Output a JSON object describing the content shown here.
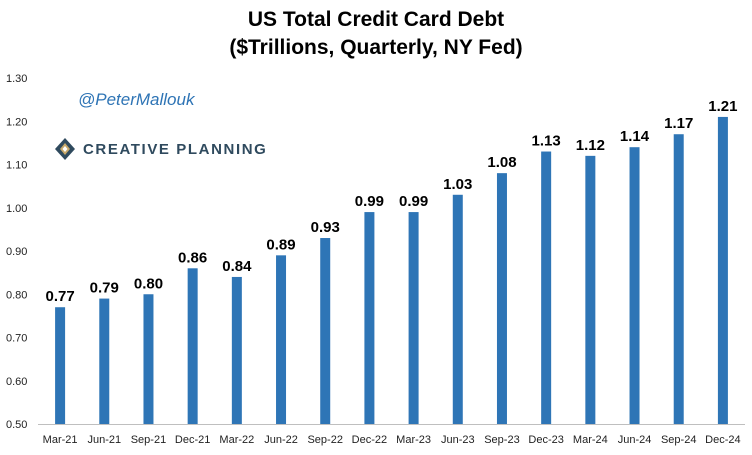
{
  "branding": {
    "handle": "@PeterMallouk",
    "company": "CREATIVE PLANNING"
  },
  "chart_data": {
    "type": "bar",
    "title_line1": "US Total Credit Card Debt",
    "title_line2": "($Trillions, Quarterly, NY Fed)",
    "xlabel": "",
    "ylabel": "",
    "ylim": [
      0.5,
      1.3
    ],
    "yticks": [
      0.5,
      0.6,
      0.7,
      0.8,
      0.9,
      1.0,
      1.1,
      1.2,
      1.3
    ],
    "ytick_labels": [
      "0.50",
      "0.60",
      "0.70",
      "0.80",
      "0.90",
      "1.00",
      "1.10",
      "1.20",
      "1.30"
    ],
    "categories": [
      "Mar-21",
      "Jun-21",
      "Sep-21",
      "Dec-21",
      "Mar-22",
      "Jun-22",
      "Sep-22",
      "Dec-22",
      "Mar-23",
      "Jun-23",
      "Sep-23",
      "Dec-23",
      "Mar-24",
      "Jun-24",
      "Sep-24",
      "Dec-24"
    ],
    "values": [
      0.77,
      0.79,
      0.8,
      0.86,
      0.84,
      0.89,
      0.93,
      0.99,
      0.99,
      1.03,
      1.08,
      1.13,
      1.12,
      1.14,
      1.17,
      1.21
    ],
    "value_labels": [
      "0.77",
      "0.79",
      "0.80",
      "0.86",
      "0.84",
      "0.89",
      "0.93",
      "0.99",
      "0.99",
      "1.03",
      "1.08",
      "1.13",
      "1.12",
      "1.14",
      "1.17",
      "1.21"
    ],
    "bar_color": "#2e75b6",
    "grid": false
  }
}
